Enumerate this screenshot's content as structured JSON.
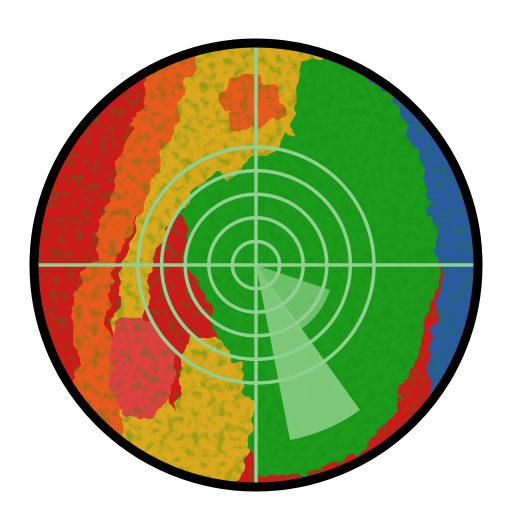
{
  "radar": {
    "rings": 5,
    "colors": {
      "red": "#cc1a1a",
      "red_light": "#e04040",
      "orange": "#e85a1e",
      "yellow": "#d9a81a",
      "green": "#1a9a1a",
      "green_dark": "#138a13",
      "blue": "#2a5aa0",
      "blue_light": "#3a6bb8",
      "grid": "#90d090",
      "sweep": "#8fd08a",
      "border": "#000000",
      "background": "#ffffff"
    }
  }
}
